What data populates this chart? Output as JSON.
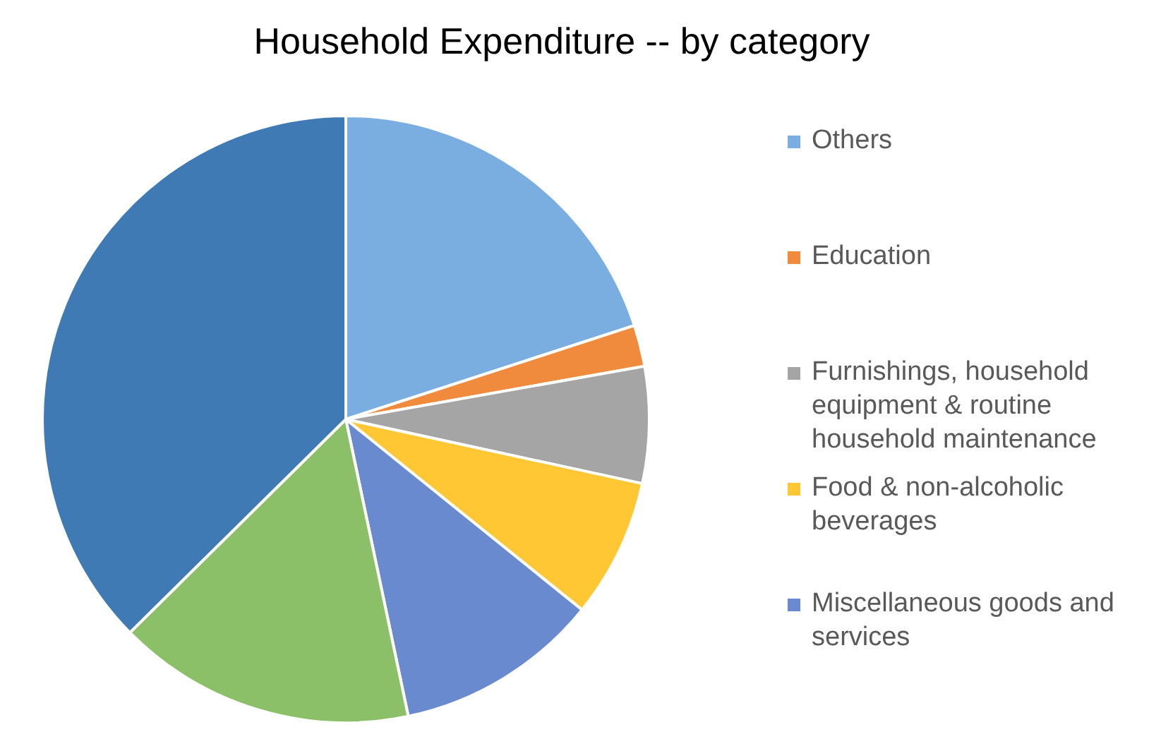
{
  "chart_data": {
    "type": "pie",
    "title": "Household Expenditure -- by category",
    "categories": [
      "Others",
      "Education",
      "Furnishings, household equipment & routine household maintenance",
      "Food & non-alcoholic beverages",
      "Miscellaneous goods and services",
      null,
      null
    ],
    "values": [
      20,
      2.2,
      6.2,
      7.4,
      10.9,
      15.9,
      37.4
    ],
    "colors": [
      "#7aaee0",
      "#f08a3c",
      "#a5a5a5",
      "#ffc733",
      "#6a8ad0",
      "#8cc068",
      "#3f7ab5"
    ],
    "legend": "right"
  }
}
